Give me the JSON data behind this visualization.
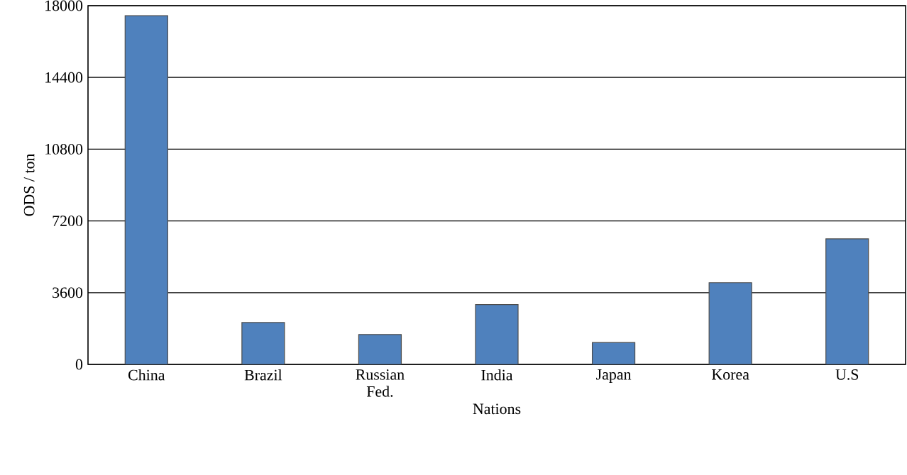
{
  "chart_data": {
    "type": "bar",
    "xlabel": "Nations",
    "ylabel": "ODS / ton",
    "categories": [
      "China",
      "Brazil",
      "Russian Fed.",
      "India",
      "Japan",
      "Korea",
      "U.S"
    ],
    "values": [
      17500,
      2100,
      1500,
      3000,
      1100,
      4100,
      6300
    ],
    "color": "#4f81bd",
    "ylim": [
      0,
      18000
    ],
    "yticks": [
      0,
      3600,
      7200,
      10800,
      14400,
      18000
    ],
    "grid": "y"
  }
}
